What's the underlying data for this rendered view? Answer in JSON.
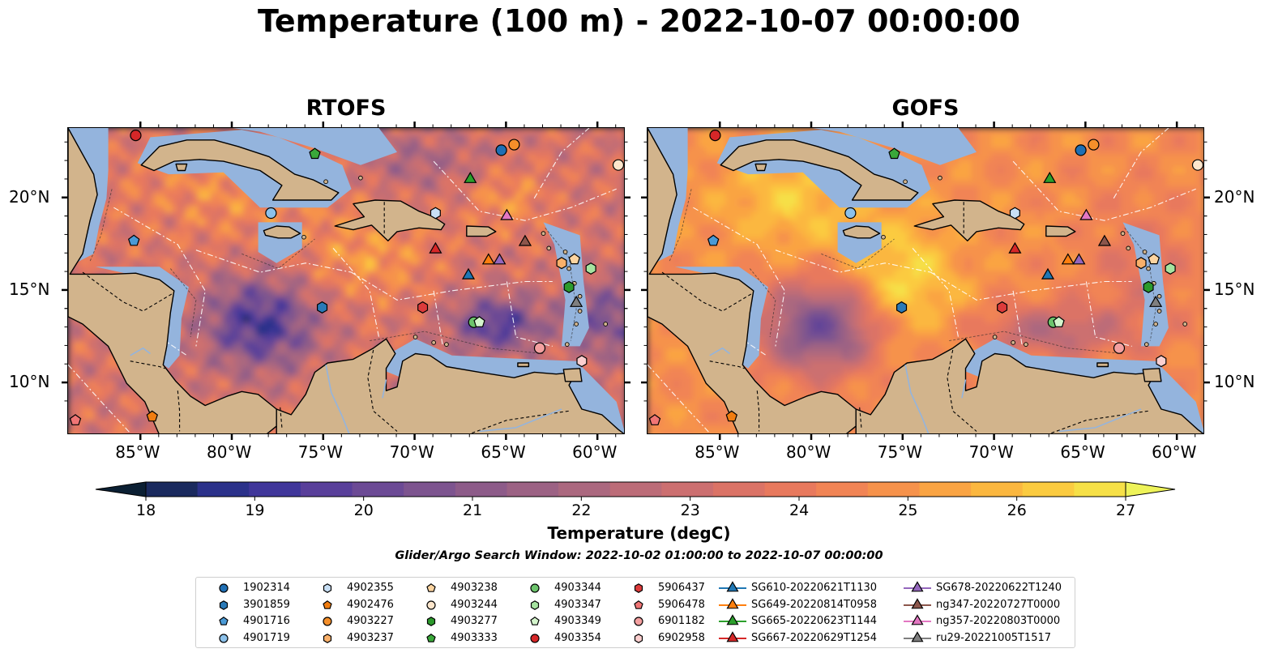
{
  "title": "Temperature (100 m) - 2022-10-07 00:00:00",
  "panels": [
    {
      "title": "RTOFS",
      "variant": "rtofs"
    },
    {
      "title": "GOFS",
      "variant": "gofs"
    }
  ],
  "axes": {
    "lon_ticks": [
      -85,
      -80,
      -75,
      -70,
      -65,
      -60
    ],
    "lon_labels": [
      "85°W",
      "80°W",
      "75°W",
      "70°W",
      "65°W",
      "60°W"
    ],
    "lat_ticks": [
      10,
      15,
      20
    ],
    "lat_labels": [
      "10°N",
      "15°N",
      "20°N"
    ],
    "lon_range": [
      -89,
      -58.5
    ],
    "lat_range": [
      7.2,
      23.8
    ]
  },
  "colorbar": {
    "label": "Temperature (degC)",
    "ticks": [
      "18",
      "19",
      "20",
      "21",
      "22",
      "23",
      "24",
      "25",
      "26",
      "27"
    ],
    "range": [
      18,
      27
    ],
    "extend": "both",
    "colors": [
      "#0b1f33",
      "#1a2a5e",
      "#2b318a",
      "#40369a",
      "#593f9a",
      "#6c4a95",
      "#7d548f",
      "#8d5b89",
      "#9c6284",
      "#ab687f",
      "#bc6c78",
      "#cc6f70",
      "#db7366",
      "#e8795d",
      "#f18455",
      "#f6924b",
      "#faa443",
      "#fbb73f",
      "#fbcb40",
      "#f6e047",
      "#eef359"
    ]
  },
  "search_window": "Glider/Argo Search Window: 2022-10-02 01:00:00 to 2022-10-07 00:00:00",
  "colors": {
    "land": "#d2b48c",
    "shelf": "#94b4dd",
    "pacific": "#0b1f33"
  },
  "observations": [
    {
      "name": "1902314",
      "lon": -65.3,
      "lat": 22.6,
      "marker": "circle",
      "color": "#1f6fb4"
    },
    {
      "name": "3901859",
      "lon": -75.1,
      "lat": 14.1,
      "marker": "hexagon",
      "color": "#2a7ab8"
    },
    {
      "name": "4901716",
      "lon": -85.4,
      "lat": 17.7,
      "marker": "pentagon",
      "color": "#4a9ad6"
    },
    {
      "name": "4901719",
      "lon": -77.9,
      "lat": 19.2,
      "marker": "circle",
      "color": "#8cc1ea"
    },
    {
      "name": "4902355",
      "lon": -68.9,
      "lat": 19.2,
      "marker": "hexagon",
      "color": "#c8dff5"
    },
    {
      "name": "4902476",
      "lon": -84.4,
      "lat": 8.2,
      "marker": "pentagon",
      "color": "#f07d10"
    },
    {
      "name": "4903227",
      "lon": -64.6,
      "lat": 22.9,
      "marker": "circle",
      "color": "#f58f2a"
    },
    {
      "name": "4903237",
      "lon": -62.0,
      "lat": 16.5,
      "marker": "hexagon",
      "color": "#f9b06a"
    },
    {
      "name": "4903238",
      "lon": -61.3,
      "lat": 16.7,
      "marker": "pentagon",
      "color": "#fcd4a0"
    },
    {
      "name": "4903244",
      "lon": -58.9,
      "lat": 21.8,
      "marker": "circle",
      "color": "#fde6cc"
    },
    {
      "name": "4903277",
      "lon": -61.6,
      "lat": 15.2,
      "marker": "hexagon",
      "color": "#2c9a2c"
    },
    {
      "name": "4903333",
      "lon": -75.5,
      "lat": 22.4,
      "marker": "pentagon",
      "color": "#3aa83a"
    },
    {
      "name": "4903344",
      "lon": -66.8,
      "lat": 13.3,
      "marker": "circle",
      "color": "#6cc46c"
    },
    {
      "name": "4903347",
      "lon": -60.4,
      "lat": 16.2,
      "marker": "hexagon",
      "color": "#a6e3a0"
    },
    {
      "name": "4903349",
      "lon": -66.5,
      "lat": 13.3,
      "marker": "pentagon",
      "color": "#d4f5cc"
    },
    {
      "name": "4903354",
      "lon": -85.3,
      "lat": 23.4,
      "marker": "circle",
      "color": "#d62728"
    },
    {
      "name": "5906437",
      "lon": -69.6,
      "lat": 14.1,
      "marker": "hexagon",
      "color": "#dd3b3b"
    },
    {
      "name": "5906478",
      "lon": -88.6,
      "lat": 8.0,
      "marker": "pentagon",
      "color": "#f07575"
    },
    {
      "name": "6901182",
      "lon": -63.2,
      "lat": 11.9,
      "marker": "circle",
      "color": "#f4a0a0"
    },
    {
      "name": "6902958",
      "lon": -60.9,
      "lat": 11.2,
      "marker": "hexagon",
      "color": "#fbcfcf"
    },
    {
      "name": "SG610-20220621T1130",
      "lon": -67.1,
      "lat": 15.9,
      "marker": "triangle",
      "color": "#1f77b4",
      "glider": true
    },
    {
      "name": "SG649-20220814T0958",
      "lon": -66.0,
      "lat": 16.7,
      "marker": "triangle",
      "color": "#ff7f0e",
      "glider": true
    },
    {
      "name": "SG665-20220623T1144",
      "lon": -67.0,
      "lat": 21.1,
      "marker": "triangle",
      "color": "#2ca02c",
      "glider": true
    },
    {
      "name": "SG667-20220629T1254",
      "lon": -68.9,
      "lat": 17.3,
      "marker": "triangle",
      "color": "#d62728",
      "glider": true
    },
    {
      "name": "SG678-20220622T1240",
      "lon": -65.4,
      "lat": 16.7,
      "marker": "triangle",
      "color": "#9467bd",
      "glider": true
    },
    {
      "name": "ng347-20220727T0000",
      "lon": -64.0,
      "lat": 17.7,
      "marker": "triangle",
      "color": "#8c564b",
      "glider": true
    },
    {
      "name": "ng357-20220803T0000",
      "lon": -65.0,
      "lat": 19.1,
      "marker": "triangle",
      "color": "#e377c2",
      "glider": true
    },
    {
      "name": "ru29-20221005T1517",
      "lon": -61.2,
      "lat": 14.4,
      "marker": "triangle",
      "color": "#7f7f7f",
      "glider": true
    }
  ]
}
